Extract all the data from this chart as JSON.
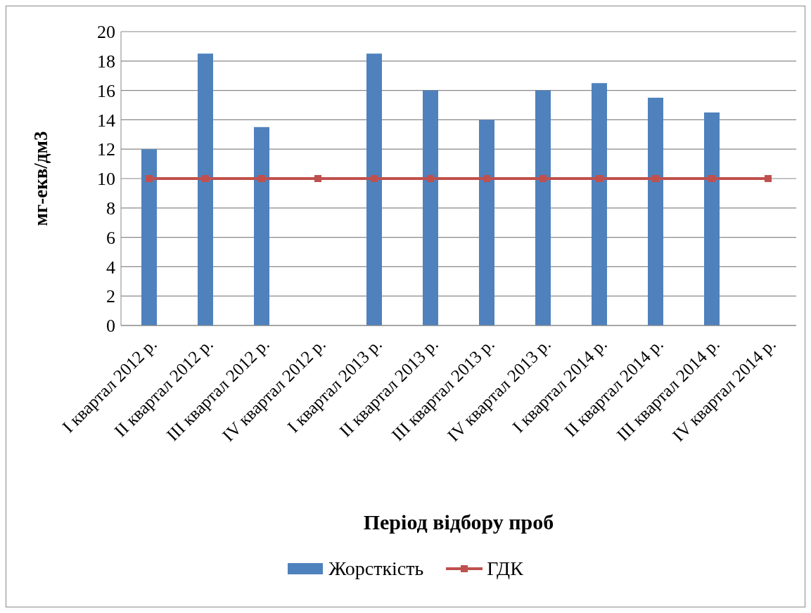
{
  "chart_data": {
    "type": "bar",
    "xlabel": "Період відбору проб",
    "ylabel": "мг-екв/дм3",
    "categories": [
      "I квартал 2012 р.",
      "II квартал 2012 р.",
      "III квартал 2012 р.",
      "IV квартал 2012 р.",
      "I квартал 2013 р.",
      "II квартал 2013 р.",
      "III квартал 2013 р.",
      "IV квартал 2013 р.",
      "I квартал 2014 р.",
      "II квартал 2014 р.",
      "III квартал 2014 р.",
      "IV квартал 2014 р."
    ],
    "series": [
      {
        "name": "Жорсткість",
        "color": "#4f81bd",
        "values": [
          12,
          18.5,
          13.5,
          null,
          18.5,
          16,
          14,
          16,
          16.5,
          15.5,
          14.5,
          null
        ]
      },
      {
        "name": "ГДК",
        "type": "line",
        "color": "#c0504d",
        "marker": "square",
        "values": [
          10,
          10,
          10,
          10,
          10,
          10,
          10,
          10,
          10,
          10,
          10,
          10
        ]
      }
    ],
    "ylim": [
      0,
      20
    ],
    "yticks": [
      0,
      2,
      4,
      6,
      8,
      10,
      12,
      14,
      16,
      18,
      20
    ],
    "grid": "y",
    "legend": "bottom"
  }
}
